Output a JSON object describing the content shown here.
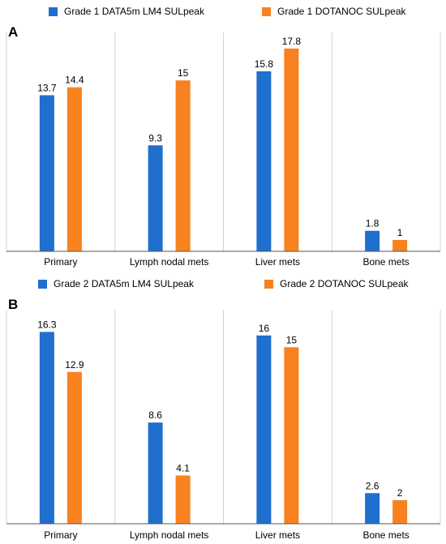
{
  "colors": {
    "series_a": "#1f6fce",
    "series_b": "#f7821f",
    "grid": "#d3d3d3",
    "axis": "#555555"
  },
  "chart_data": [
    {
      "panel_label": "A",
      "type": "bar",
      "categories": [
        "Primary",
        "Lymph nodal mets",
        "Liver mets",
        "Bone mets"
      ],
      "series": [
        {
          "name": "Grade 1 DATA5m LM4 SULpeak",
          "values": [
            13.7,
            9.3,
            15.8,
            1.8
          ],
          "labels": [
            "13.7",
            "9.3",
            "15.8",
            "1.8"
          ]
        },
        {
          "name": "Grade 1 DOTANOC SULpeak",
          "values": [
            14.4,
            15,
            17.8,
            1
          ],
          "labels": [
            "14.4",
            "15",
            "17.8",
            "1"
          ]
        }
      ],
      "ylim": [
        0,
        18.5
      ],
      "legend_position": "top",
      "grid": "vertical category separators"
    },
    {
      "panel_label": "B",
      "type": "bar",
      "categories": [
        "Primary",
        "Lymph nodal mets",
        "Liver mets",
        "Bone mets"
      ],
      "series": [
        {
          "name": "Grade 2 DATA5m LM4 SULpeak",
          "values": [
            16.3,
            8.6,
            16,
            2.6
          ],
          "labels": [
            "16.3",
            "8.6",
            "16",
            "2.6"
          ]
        },
        {
          "name": "Grade 2 DOTANOC SULpeak",
          "values": [
            12.9,
            4.1,
            15,
            2
          ],
          "labels": [
            "12.9",
            "4.1",
            "15",
            "2"
          ]
        }
      ],
      "ylim": [
        0,
        17.5
      ],
      "legend_position": "top",
      "grid": "vertical category separators"
    }
  ]
}
